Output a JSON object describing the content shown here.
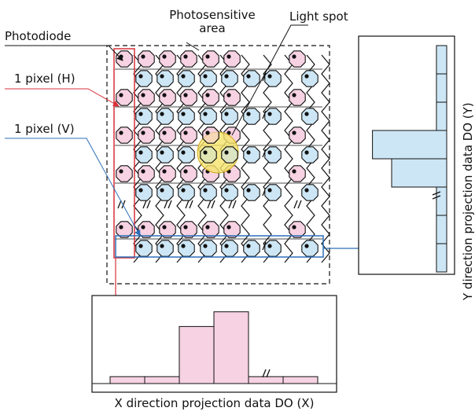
{
  "labels": {
    "photosensitive_line1": "Photosensitive",
    "photosensitive_line2": "area",
    "light_spot": "Light spot",
    "photodiode": "Photodiode",
    "pixel_h": "1 pixel (H)",
    "pixel_v": "1 pixel (V)",
    "x_projection": "X direction projection data DO (X)",
    "y_projection": "Y direction projection data DO (Y)"
  },
  "colors": {
    "pink_pixel": "#f6d2e2",
    "blue_pixel": "#cde6f5",
    "light_spot": "#f5e46a",
    "h_pixel_outline": "#d9303a",
    "v_pixel_outline": "#2d6fb8",
    "x_bars": "#f6d2e2",
    "y_bars": "#cde6f5"
  },
  "chart_data": [
    {
      "type": "bar",
      "name_printed": "X direction projection data DO (X)",
      "orientation": "vertical",
      "values": [
        0.08,
        0.08,
        0.66,
        0.83,
        0.08,
        0.08
      ],
      "break_after_index": 3
    },
    {
      "type": "bar",
      "name_printed": "Y direction projection data DO (Y)",
      "orientation": "horizontal",
      "values": [
        0.08,
        0.08,
        0.08,
        0.58,
        0.43,
        0.08,
        0.08,
        0.08
      ],
      "break_after_index": 4
    }
  ]
}
